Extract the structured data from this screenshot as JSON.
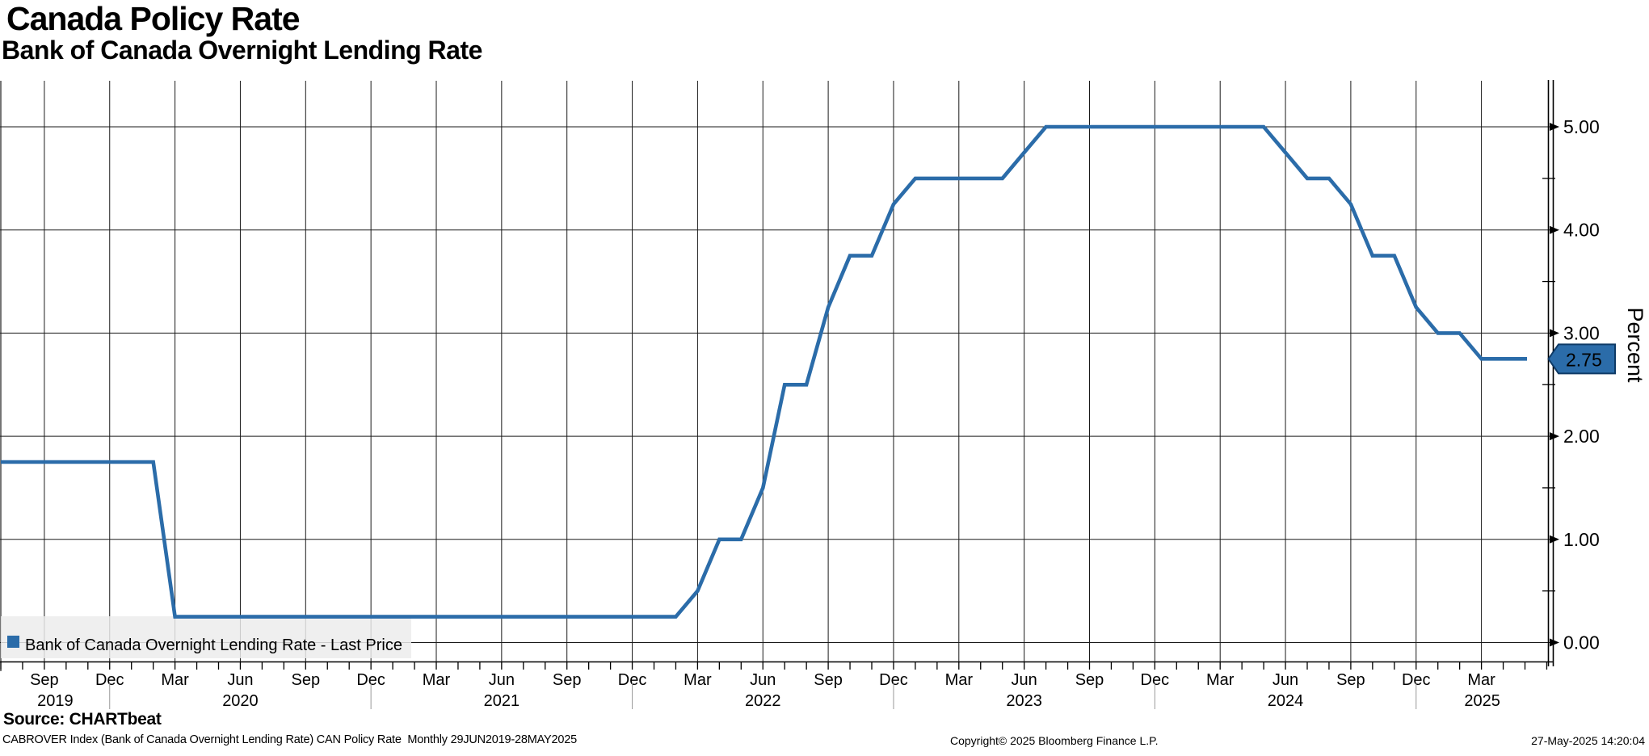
{
  "title": "Canada Policy Rate",
  "subtitle": "Bank of Canada Overnight Lending Rate",
  "legend": {
    "marker": "square",
    "label": "Bank of Canada Overnight Lending Rate - Last Price"
  },
  "y_axis": {
    "title": "Percent",
    "tick_labels": [
      "5.00",
      "4.00",
      "3.00",
      "2.00",
      "1.00",
      "0.00"
    ],
    "minor_tick_step": 0.5,
    "last_price_badge": "2.75"
  },
  "x_axis": {
    "quarter_tick_labels": [
      "Sep",
      "Dec",
      "Mar",
      "Jun",
      "Sep",
      "Dec",
      "Mar",
      "Jun",
      "Sep",
      "Dec",
      "Mar",
      "Jun",
      "Sep",
      "Dec",
      "Mar",
      "Jun",
      "Sep",
      "Dec",
      "Mar",
      "Jun",
      "Sep",
      "Dec",
      "Mar"
    ],
    "year_labels": [
      "2019",
      "2020",
      "2021",
      "2022",
      "2023",
      "2024",
      "2025"
    ]
  },
  "footer": {
    "source": "Source: CHARTbeat",
    "note": "CABROVER Index (Bank of Canada Overnight Lending Rate) CAN Policy Rate  Monthly 29JUN2019-28MAY2025",
    "copyright": "Copyright© 2025 Bloomberg Finance L.P.",
    "timestamp": "27-May-2025 14:20:04"
  },
  "colors": {
    "line": "#2B6CA9",
    "badge_fill": "#2B6CA9",
    "badge_border": "#0E3A66",
    "badge_text": "#FFFFFF",
    "grid": "#1A1A1A",
    "axis": "#000000",
    "legend_bg": "#ECECEC",
    "year_separator": "#999999"
  },
  "chart_data": {
    "type": "line",
    "title": "Canada Policy Rate",
    "subtitle": "Bank of Canada Overnight Lending Rate",
    "ylabel": "Percent",
    "ylim": [
      0,
      5
    ],
    "yticks": [
      0,
      1,
      2,
      3,
      4,
      5
    ],
    "grid": true,
    "legend_position": "bottom-left",
    "frequency": "Monthly",
    "period": "29JUN2019-28MAY2025",
    "last_value": 2.75,
    "x": [
      "Jul 2019",
      "Aug 2019",
      "Sep 2019",
      "Oct 2019",
      "Nov 2019",
      "Dec 2019",
      "Jan 2020",
      "Feb 2020",
      "Mar 2020",
      "Apr 2020",
      "May 2020",
      "Jun 2020",
      "Jul 2020",
      "Aug 2020",
      "Sep 2020",
      "Oct 2020",
      "Nov 2020",
      "Dec 2020",
      "Jan 2021",
      "Feb 2021",
      "Mar 2021",
      "Apr 2021",
      "May 2021",
      "Jun 2021",
      "Jul 2021",
      "Aug 2021",
      "Sep 2021",
      "Oct 2021",
      "Nov 2021",
      "Dec 2021",
      "Jan 2022",
      "Feb 2022",
      "Mar 2022",
      "Apr 2022",
      "May 2022",
      "Jun 2022",
      "Jul 2022",
      "Aug 2022",
      "Sep 2022",
      "Oct 2022",
      "Nov 2022",
      "Dec 2022",
      "Jan 2023",
      "Feb 2023",
      "Mar 2023",
      "Apr 2023",
      "May 2023",
      "Jun 2023",
      "Jul 2023",
      "Aug 2023",
      "Sep 2023",
      "Oct 2023",
      "Nov 2023",
      "Dec 2023",
      "Jan 2024",
      "Feb 2024",
      "Mar 2024",
      "Apr 2024",
      "May 2024",
      "Jun 2024",
      "Jul 2024",
      "Aug 2024",
      "Sep 2024",
      "Oct 2024",
      "Nov 2024",
      "Dec 2024",
      "Jan 2025",
      "Feb 2025",
      "Mar 2025",
      "Apr 2025",
      "May 2025"
    ],
    "series": [
      {
        "name": "Bank of Canada Overnight Lending Rate - Last Price",
        "values": [
          1.75,
          1.75,
          1.75,
          1.75,
          1.75,
          1.75,
          1.75,
          1.75,
          0.25,
          0.25,
          0.25,
          0.25,
          0.25,
          0.25,
          0.25,
          0.25,
          0.25,
          0.25,
          0.25,
          0.25,
          0.25,
          0.25,
          0.25,
          0.25,
          0.25,
          0.25,
          0.25,
          0.25,
          0.25,
          0.25,
          0.25,
          0.25,
          0.5,
          1.0,
          1.0,
          1.5,
          2.5,
          2.5,
          3.25,
          3.75,
          3.75,
          4.25,
          4.5,
          4.5,
          4.5,
          4.5,
          4.5,
          4.75,
          5.0,
          5.0,
          5.0,
          5.0,
          5.0,
          5.0,
          5.0,
          5.0,
          5.0,
          5.0,
          5.0,
          4.75,
          4.5,
          4.5,
          4.25,
          3.75,
          3.75,
          3.25,
          3.0,
          3.0,
          2.75,
          2.75,
          2.75
        ]
      }
    ]
  }
}
